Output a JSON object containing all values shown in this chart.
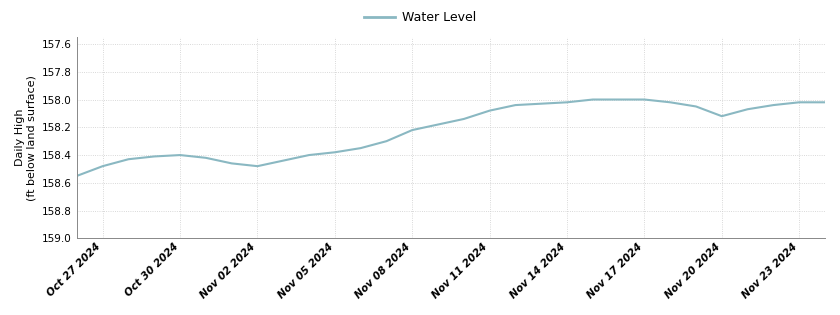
{
  "title": "Water Level",
  "ylabel_line1": "Daily High",
  "ylabel_line2": "(ft below land surface)",
  "line_color": "#8ab8c2",
  "line_width": 1.5,
  "ylim": [
    159.0,
    157.55
  ],
  "yticks": [
    157.6,
    157.8,
    158.0,
    158.2,
    158.4,
    158.6,
    158.8,
    159.0
  ],
  "background_color": "#ffffff",
  "grid_color": "#cccccc",
  "values": [
    158.55,
    158.48,
    158.43,
    158.41,
    158.4,
    158.42,
    158.46,
    158.48,
    158.44,
    158.4,
    158.38,
    158.35,
    158.3,
    158.22,
    158.18,
    158.14,
    158.08,
    158.04,
    158.03,
    158.02,
    158.0,
    158.0,
    158.0,
    158.02,
    158.05,
    158.12,
    158.07,
    158.04,
    158.02,
    158.02
  ],
  "xtick_labels": [
    "Oct 27 2024",
    "Oct 30 2024",
    "Nov 02 2024",
    "Nov 05 2024",
    "Nov 08 2024",
    "Nov 11 2024",
    "Nov 14 2024",
    "Nov 17 2024",
    "Nov 20 2024",
    "Nov 23 2024"
  ],
  "xtick_positions": [
    1,
    4,
    7,
    10,
    13,
    16,
    19,
    22,
    25,
    28
  ]
}
